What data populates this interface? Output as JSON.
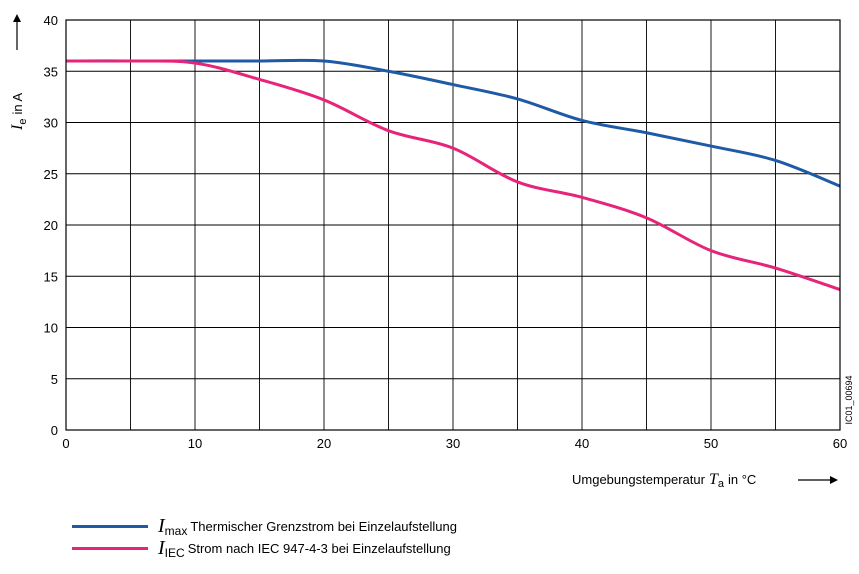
{
  "chart_data": {
    "type": "line",
    "xlim": [
      0,
      60
    ],
    "ylim": [
      0,
      40
    ],
    "x_ticks": [
      0,
      10,
      20,
      30,
      40,
      50,
      60
    ],
    "y_ticks": [
      0,
      5,
      10,
      15,
      20,
      25,
      30,
      35,
      40
    ],
    "x_grid_step": 5,
    "y_grid_step": 5,
    "grid": true,
    "legend_position": "bottom-left",
    "ylabel": {
      "symbol": "I",
      "sub": "e",
      "text": "in A"
    },
    "xlabel": {
      "text": "Umgebungstemperatur",
      "symbol": "T",
      "sub": "a",
      "unit": "in °C"
    },
    "figure_code": "IC01_00694",
    "series": [
      {
        "name_symbol": "I",
        "name_sub": "max",
        "name": "Thermischer Grenzstrom bei Einzelaufstellung",
        "color": "#1f5aa6",
        "x": [
          0,
          5,
          10,
          15,
          20,
          25,
          30,
          35,
          40,
          45,
          50,
          55,
          60
        ],
        "y": [
          36,
          36,
          36,
          36,
          36,
          35,
          33.7,
          32.3,
          30.2,
          29.0,
          27.7,
          26.3,
          23.8
        ]
      },
      {
        "name_symbol": "I",
        "name_sub": "IEC",
        "name": "Strom nach IEC 947-4-3 bei Einzelaufstellung",
        "color": "#e6247a",
        "x": [
          0,
          5,
          10,
          15,
          20,
          25,
          30,
          35,
          40,
          45,
          50,
          55,
          60
        ],
        "y": [
          36,
          36,
          35.8,
          34.2,
          32.2,
          29.2,
          27.5,
          24.2,
          22.7,
          20.7,
          17.5,
          15.8,
          13.7
        ]
      }
    ]
  }
}
